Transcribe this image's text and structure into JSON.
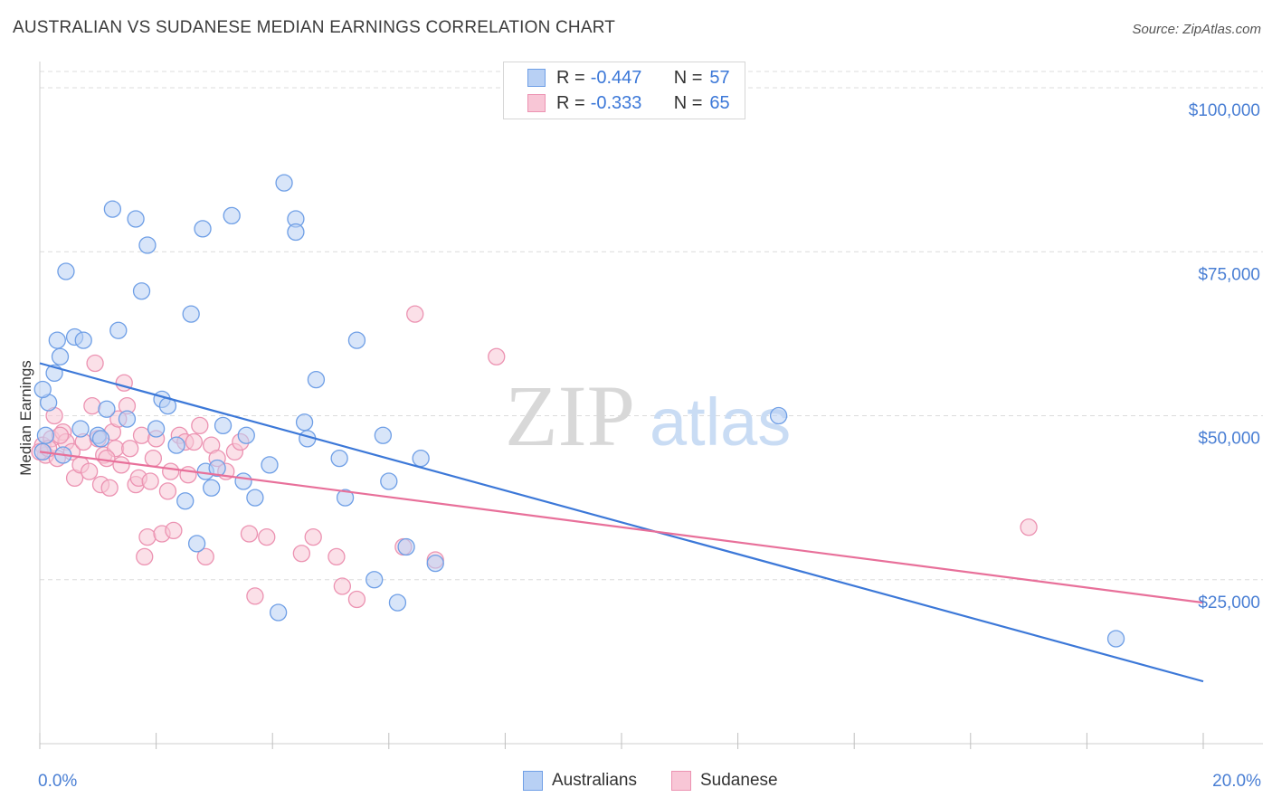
{
  "title": "AUSTRALIAN VS SUDANESE MEDIAN EARNINGS CORRELATION CHART",
  "source": "Source: ZipAtlas.com",
  "watermark": {
    "zip": "ZIP",
    "atlas": "atlas"
  },
  "legend": {
    "rows": [
      {
        "r_label": "R =",
        "r_value": "-0.447",
        "n_label": "N =",
        "n_value": "57"
      },
      {
        "r_label": "R =",
        "r_value": "-0.333",
        "n_label": "N =",
        "n_value": "65"
      }
    ]
  },
  "bottom_legend": {
    "a": "Australians",
    "b": "Sudanese"
  },
  "colors": {
    "blue": "#3c78d8",
    "blue_fill": "#b8d0f4",
    "pink": "#e8709a",
    "pink_fill": "#f8c6d6",
    "axis_text": "#4a7fd4"
  },
  "chart_data": {
    "type": "scatter",
    "xlabel": "",
    "ylabel": "Median Earnings",
    "xlim": [
      0,
      20
    ],
    "ylim": [
      0,
      104000
    ],
    "x_tick_labels": {
      "left": "0.0%",
      "right": "20.0%"
    },
    "y_ticks": [
      {
        "value": 25000,
        "label": "$25,000"
      },
      {
        "value": 50000,
        "label": "$50,000"
      },
      {
        "value": 75000,
        "label": "$75,000"
      },
      {
        "value": 100000,
        "label": "$100,000"
      }
    ],
    "grid": true,
    "series": [
      {
        "name": "Australians",
        "color": "#3c78d8",
        "trend": {
          "x": [
            0.0,
            20.0
          ],
          "y": [
            58000,
            9500
          ]
        },
        "points": [
          [
            0.05,
            44500
          ],
          [
            0.15,
            52000
          ],
          [
            0.25,
            56500
          ],
          [
            0.3,
            61500
          ],
          [
            0.35,
            59000
          ],
          [
            0.45,
            72000
          ],
          [
            0.6,
            62000
          ],
          [
            0.7,
            48000
          ],
          [
            0.75,
            61500
          ],
          [
            1.0,
            47000
          ],
          [
            1.05,
            46500
          ],
          [
            1.15,
            51000
          ],
          [
            1.25,
            81500
          ],
          [
            1.35,
            63000
          ],
          [
            1.5,
            49500
          ],
          [
            1.65,
            80000
          ],
          [
            1.75,
            69000
          ],
          [
            1.85,
            76000
          ],
          [
            2.0,
            48000
          ],
          [
            2.1,
            52500
          ],
          [
            2.2,
            51500
          ],
          [
            2.35,
            45500
          ],
          [
            2.5,
            37000
          ],
          [
            2.6,
            65500
          ],
          [
            2.7,
            30500
          ],
          [
            2.8,
            78500
          ],
          [
            2.85,
            41500
          ],
          [
            2.95,
            39000
          ],
          [
            3.05,
            42000
          ],
          [
            3.15,
            48500
          ],
          [
            3.3,
            80500
          ],
          [
            3.5,
            40000
          ],
          [
            3.55,
            47000
          ],
          [
            3.7,
            37500
          ],
          [
            3.95,
            42500
          ],
          [
            4.1,
            20000
          ],
          [
            4.2,
            85500
          ],
          [
            4.4,
            80000
          ],
          [
            4.4,
            78000
          ],
          [
            4.55,
            49000
          ],
          [
            4.6,
            46500
          ],
          [
            4.75,
            55500
          ],
          [
            5.15,
            43500
          ],
          [
            5.25,
            37500
          ],
          [
            5.45,
            61500
          ],
          [
            5.75,
            25000
          ],
          [
            5.9,
            47000
          ],
          [
            6.0,
            40000
          ],
          [
            6.15,
            21500
          ],
          [
            6.3,
            30000
          ],
          [
            6.55,
            43500
          ],
          [
            6.8,
            27500
          ],
          [
            12.7,
            50000
          ],
          [
            18.5,
            16000
          ],
          [
            0.05,
            54000
          ],
          [
            0.1,
            47000
          ],
          [
            0.4,
            44000
          ]
        ]
      },
      {
        "name": "Sudanese",
        "color": "#e8709a",
        "trend": {
          "x": [
            0.0,
            20.0
          ],
          "y": [
            44500,
            21500
          ]
        },
        "points": [
          [
            0.05,
            45500
          ],
          [
            0.1,
            44000
          ],
          [
            0.2,
            46500
          ],
          [
            0.25,
            50000
          ],
          [
            0.3,
            43500
          ],
          [
            0.4,
            47500
          ],
          [
            0.45,
            46000
          ],
          [
            0.55,
            44500
          ],
          [
            0.6,
            40500
          ],
          [
            0.7,
            42500
          ],
          [
            0.75,
            46000
          ],
          [
            0.85,
            41500
          ],
          [
            0.9,
            51500
          ],
          [
            0.95,
            58000
          ],
          [
            1.0,
            46500
          ],
          [
            1.05,
            39500
          ],
          [
            1.1,
            44000
          ],
          [
            1.2,
            39000
          ],
          [
            1.25,
            47500
          ],
          [
            1.3,
            45000
          ],
          [
            1.35,
            49500
          ],
          [
            1.4,
            42500
          ],
          [
            1.45,
            55000
          ],
          [
            1.5,
            51500
          ],
          [
            1.55,
            45000
          ],
          [
            1.65,
            39500
          ],
          [
            1.7,
            40500
          ],
          [
            1.75,
            47000
          ],
          [
            1.8,
            28500
          ],
          [
            1.85,
            31500
          ],
          [
            1.95,
            43500
          ],
          [
            2.0,
            46500
          ],
          [
            2.1,
            32000
          ],
          [
            2.2,
            38500
          ],
          [
            2.25,
            41500
          ],
          [
            2.3,
            32500
          ],
          [
            2.4,
            47000
          ],
          [
            2.5,
            46000
          ],
          [
            2.55,
            41000
          ],
          [
            2.65,
            46000
          ],
          [
            2.75,
            48500
          ],
          [
            2.85,
            28500
          ],
          [
            2.95,
            45500
          ],
          [
            3.05,
            43500
          ],
          [
            3.2,
            41500
          ],
          [
            3.35,
            44500
          ],
          [
            3.45,
            46000
          ],
          [
            3.6,
            32000
          ],
          [
            3.7,
            22500
          ],
          [
            3.9,
            31500
          ],
          [
            4.5,
            29000
          ],
          [
            4.7,
            31500
          ],
          [
            5.1,
            28500
          ],
          [
            5.2,
            24000
          ],
          [
            5.45,
            22000
          ],
          [
            6.25,
            30000
          ],
          [
            6.45,
            65500
          ],
          [
            6.8,
            28000
          ],
          [
            7.85,
            59000
          ],
          [
            17.0,
            33000
          ],
          [
            0.0,
            44500
          ],
          [
            0.15,
            45000
          ],
          [
            0.35,
            47000
          ],
          [
            1.15,
            43500
          ],
          [
            1.9,
            40000
          ]
        ]
      }
    ]
  }
}
